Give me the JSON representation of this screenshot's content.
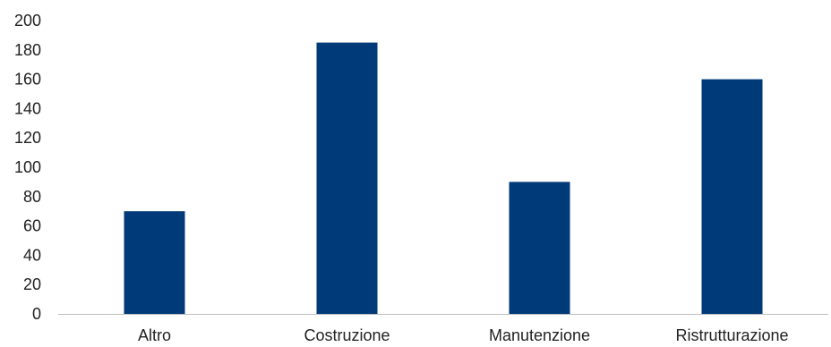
{
  "chart_data": {
    "type": "bar",
    "categories": [
      "Altro",
      "Costruzione",
      "Manutenzione",
      "Ristrutturazione"
    ],
    "values": [
      70,
      185,
      90,
      160
    ],
    "title": "",
    "xlabel": "",
    "ylabel": "",
    "ylim": [
      0,
      200
    ],
    "yticks": [
      0,
      20,
      40,
      60,
      80,
      100,
      120,
      140,
      160,
      180,
      200
    ],
    "grid": false,
    "legend": "none",
    "bar_color": "#003a78",
    "axis_color": "#bfbfbf"
  }
}
